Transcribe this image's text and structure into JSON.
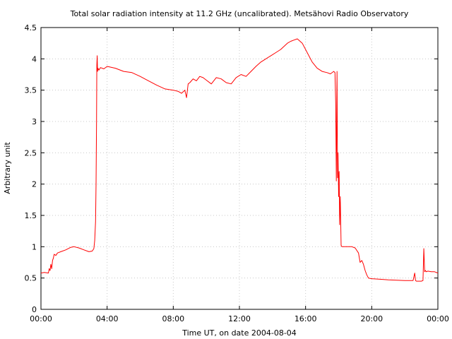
{
  "chart_data": {
    "type": "line",
    "title": "Total solar radiation intensity at 11.2 GHz (uncalibrated). Metsähovi Radio Observatory",
    "xlabel": "Time UT, on date 2004-08-04",
    "ylabel": "Arbitrary unit",
    "xlim": [
      0,
      24
    ],
    "ylim": [
      0,
      4.5
    ],
    "grid": true,
    "line_color": "#ff0000",
    "x_ticks": [
      {
        "value": 0,
        "label": "00:00"
      },
      {
        "value": 4,
        "label": "04:00"
      },
      {
        "value": 8,
        "label": "08:00"
      },
      {
        "value": 12,
        "label": "12:00"
      },
      {
        "value": 16,
        "label": "16:00"
      },
      {
        "value": 20,
        "label": "20:00"
      },
      {
        "value": 24,
        "label": "00:00"
      }
    ],
    "y_ticks": [
      {
        "value": 0,
        "label": "0"
      },
      {
        "value": 0.5,
        "label": "0.5"
      },
      {
        "value": 1,
        "label": "1"
      },
      {
        "value": 1.5,
        "label": "1.5"
      },
      {
        "value": 2,
        "label": "2"
      },
      {
        "value": 2.5,
        "label": "2.5"
      },
      {
        "value": 3,
        "label": "3"
      },
      {
        "value": 3.5,
        "label": "3.5"
      },
      {
        "value": 4,
        "label": "4"
      },
      {
        "value": 4.5,
        "label": "4.5"
      }
    ],
    "series": [
      {
        "x": [
          0,
          0.2,
          0.45,
          0.5,
          0.55,
          0.6,
          0.65,
          0.7,
          0.75,
          0.8,
          0.9,
          1.0,
          1.2,
          1.5,
          1.8,
          2.0,
          2.3,
          2.6,
          2.9,
          3.1,
          3.2,
          3.25,
          3.3,
          3.33,
          3.36,
          3.38,
          3.4,
          3.42,
          3.45,
          3.5,
          3.6,
          3.8,
          4.0,
          4.5,
          5.0,
          5.5,
          6.0,
          6.5,
          7.0,
          7.5,
          8.0,
          8.3,
          8.5,
          8.7,
          8.8,
          8.9,
          9.0,
          9.2,
          9.4,
          9.6,
          9.8,
          10.0,
          10.3,
          10.6,
          10.9,
          11.2,
          11.5,
          11.8,
          12.1,
          12.4,
          12.7,
          13.0,
          13.3,
          13.6,
          13.9,
          14.2,
          14.5,
          14.7,
          14.9,
          15.1,
          15.3,
          15.5,
          15.8,
          16.1,
          16.4,
          16.7,
          17.0,
          17.3,
          17.5,
          17.7,
          17.78,
          17.82,
          17.86,
          17.9,
          17.93,
          17.96,
          18.0,
          18.03,
          18.06,
          18.1,
          18.15,
          18.2,
          18.3,
          18.5,
          18.8,
          19.0,
          19.2,
          19.3,
          19.4,
          19.5,
          19.6,
          19.7,
          19.8,
          20.0,
          20.5,
          21.0,
          21.5,
          22.0,
          22.5,
          22.6,
          22.65,
          22.7,
          22.8,
          23.0,
          23.1,
          23.15,
          23.2,
          23.25,
          23.3,
          23.4,
          23.6,
          23.8,
          24.0
        ],
        "y": [
          0.58,
          0.59,
          0.58,
          0.65,
          0.62,
          0.72,
          0.65,
          0.78,
          0.82,
          0.88,
          0.86,
          0.9,
          0.92,
          0.95,
          0.99,
          1.0,
          0.98,
          0.95,
          0.92,
          0.93,
          0.97,
          1.1,
          1.4,
          2.0,
          3.0,
          3.9,
          4.05,
          3.8,
          3.85,
          3.82,
          3.86,
          3.84,
          3.88,
          3.85,
          3.8,
          3.78,
          3.72,
          3.65,
          3.58,
          3.52,
          3.5,
          3.48,
          3.45,
          3.5,
          3.38,
          3.6,
          3.62,
          3.68,
          3.65,
          3.72,
          3.7,
          3.66,
          3.6,
          3.7,
          3.68,
          3.62,
          3.6,
          3.7,
          3.75,
          3.72,
          3.8,
          3.88,
          3.95,
          4.0,
          4.05,
          4.1,
          4.15,
          4.2,
          4.25,
          4.28,
          4.3,
          4.32,
          4.25,
          4.1,
          3.95,
          3.85,
          3.8,
          3.78,
          3.76,
          3.8,
          3.78,
          3.3,
          2.05,
          3.8,
          2.1,
          2.5,
          1.8,
          2.2,
          1.35,
          1.8,
          1.02,
          1.0,
          1.0,
          1.0,
          1.0,
          0.98,
          0.9,
          0.75,
          0.78,
          0.72,
          0.62,
          0.55,
          0.5,
          0.49,
          0.48,
          0.47,
          0.465,
          0.46,
          0.46,
          0.58,
          0.46,
          0.45,
          0.45,
          0.45,
          0.46,
          0.97,
          0.6,
          0.62,
          0.6,
          0.61,
          0.6,
          0.6,
          0.58
        ]
      }
    ]
  }
}
